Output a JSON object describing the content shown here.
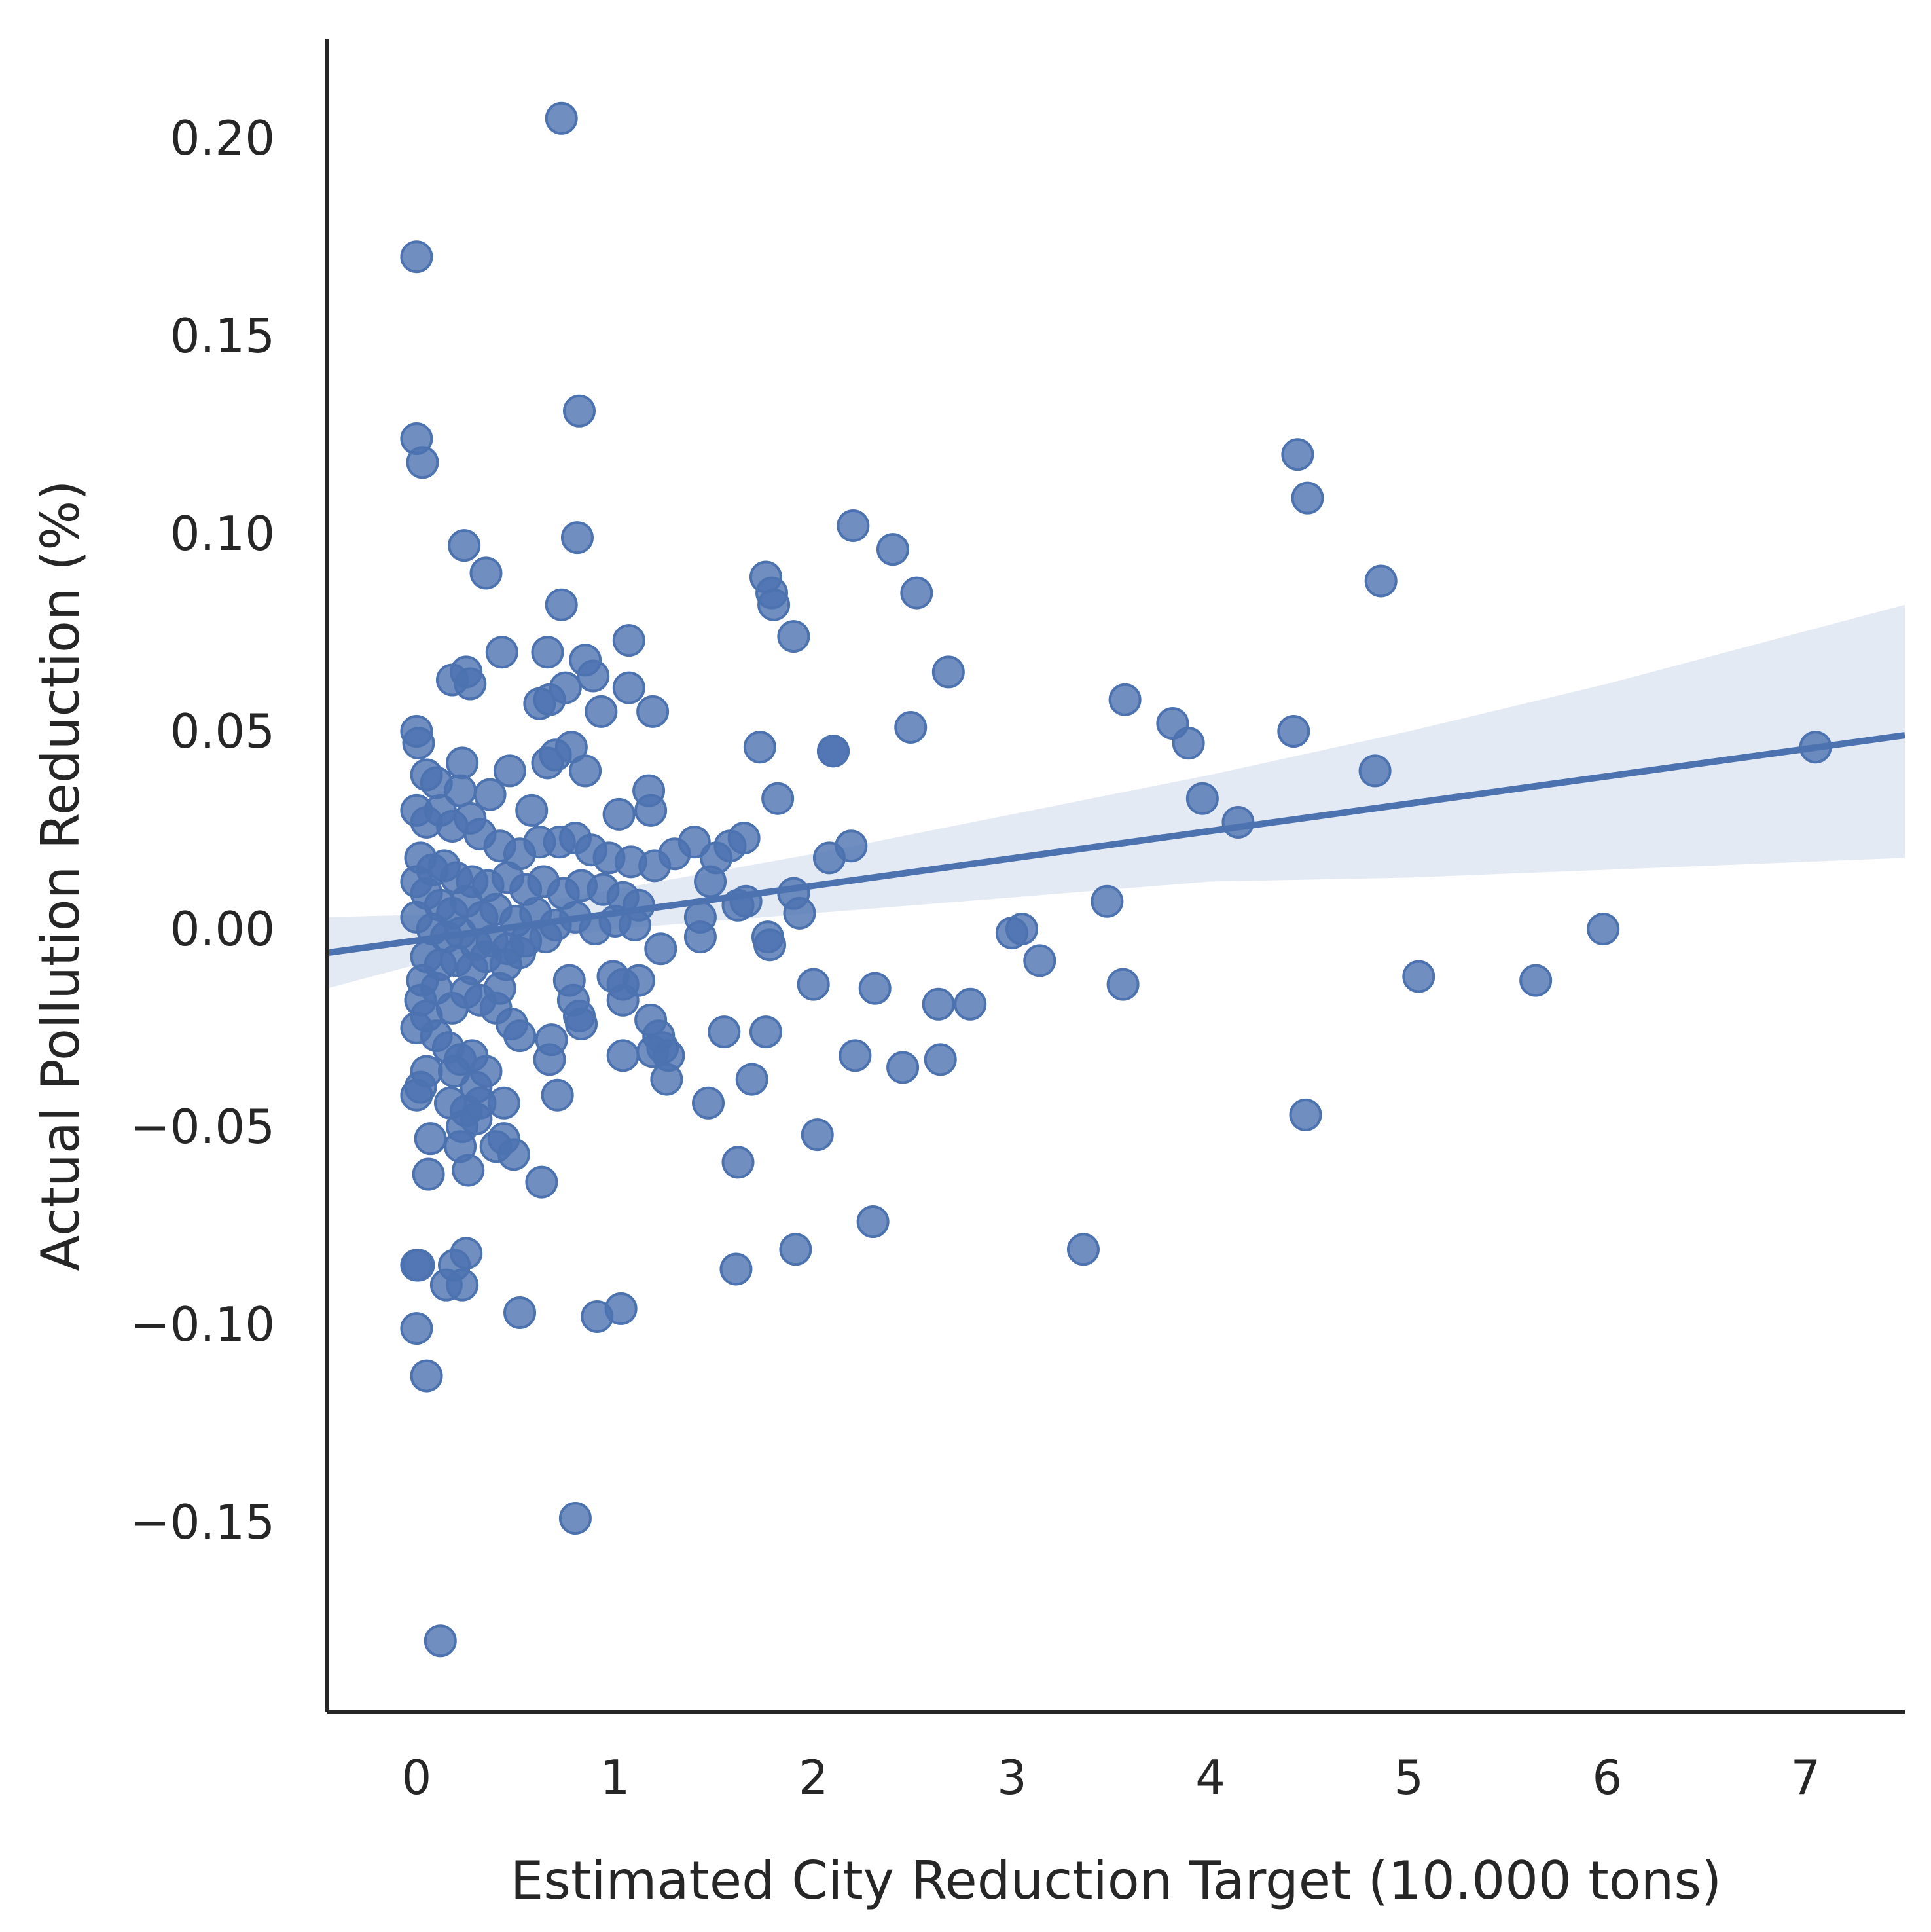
{
  "chart_data": {
    "type": "scatter",
    "title": "",
    "xlabel": "Estimated City Reduction Target (10.000 tons)",
    "ylabel": "Actual Pollution Reduction (%)",
    "xlim": [
      -0.45,
      7.5
    ],
    "ylim": [
      -0.198,
      0.225
    ],
    "xticks": [
      0,
      1,
      2,
      3,
      4,
      5,
      6,
      7
    ],
    "xtick_labels": [
      "0",
      "1",
      "2",
      "3",
      "4",
      "5",
      "6",
      "7"
    ],
    "yticks": [
      0.2,
      0.15,
      0.1,
      0.05,
      0.0,
      -0.05,
      -0.1,
      -0.15
    ],
    "ytick_labels": [
      "0.20",
      "0.15",
      "0.10",
      "0.05",
      "0.00",
      "−0.05",
      "−0.10",
      "−0.15"
    ],
    "grid": false,
    "color": "#4c72b0",
    "regression": {
      "x": [
        -0.45,
        7.5
      ],
      "y": [
        -0.006,
        0.049
      ]
    },
    "confidence_band": {
      "x": [
        -0.45,
        0.3,
        1.0,
        2.0,
        3.0,
        4.0,
        5.0,
        6.0,
        7.5
      ],
      "upper": [
        0.003,
        0.004,
        0.01,
        0.019,
        0.029,
        0.039,
        0.05,
        0.062,
        0.082
      ],
      "lower": [
        -0.015,
        -0.005,
        0.0,
        0.004,
        0.008,
        0.012,
        0.013,
        0.015,
        0.018
      ]
    },
    "points": [
      [
        0.73,
        0.205
      ],
      [
        0.0,
        0.17
      ],
      [
        0.82,
        0.131
      ],
      [
        0.0,
        0.124
      ],
      [
        0.03,
        0.118
      ],
      [
        0.24,
        0.097
      ],
      [
        0.35,
        0.09
      ],
      [
        0.81,
        0.099
      ],
      [
        0.73,
        0.082
      ],
      [
        0.43,
        0.07
      ],
      [
        0.66,
        0.07
      ],
      [
        0.85,
        0.068
      ],
      [
        0.89,
        0.064
      ],
      [
        1.07,
        0.073
      ],
      [
        0.18,
        0.063
      ],
      [
        0.25,
        0.065
      ],
      [
        0.27,
        0.062
      ],
      [
        0.75,
        0.061
      ],
      [
        0.62,
        0.057
      ],
      [
        0.67,
        0.058
      ],
      [
        0.93,
        0.055
      ],
      [
        1.07,
        0.061
      ],
      [
        1.19,
        0.055
      ],
      [
        0.0,
        0.05
      ],
      [
        0.01,
        0.047
      ],
      [
        0.78,
        0.046
      ],
      [
        0.7,
        0.044
      ],
      [
        0.66,
        0.042
      ],
      [
        0.85,
        0.04
      ],
      [
        0.47,
        0.04
      ],
      [
        0.23,
        0.042
      ],
      [
        0.05,
        0.039
      ],
      [
        0.1,
        0.037
      ],
      [
        0.22,
        0.035
      ],
      [
        0.37,
        0.034
      ],
      [
        0.58,
        0.03
      ],
      [
        0.12,
        0.03
      ],
      [
        0.0,
        0.03
      ],
      [
        1.17,
        0.035
      ],
      [
        1.18,
        0.03
      ],
      [
        1.02,
        0.029
      ],
      [
        0.05,
        0.027
      ],
      [
        0.18,
        0.026
      ],
      [
        0.27,
        0.028
      ],
      [
        0.32,
        0.024
      ],
      [
        0.42,
        0.021
      ],
      [
        0.52,
        0.019
      ],
      [
        0.62,
        0.022
      ],
      [
        0.72,
        0.022
      ],
      [
        0.8,
        0.023
      ],
      [
        0.88,
        0.02
      ],
      [
        0.97,
        0.018
      ],
      [
        1.08,
        0.017
      ],
      [
        1.2,
        0.016
      ],
      [
        1.3,
        0.019
      ],
      [
        1.4,
        0.022
      ],
      [
        1.51,
        0.018
      ],
      [
        1.58,
        0.021
      ],
      [
        1.65,
        0.023
      ],
      [
        0.02,
        0.018
      ],
      [
        0.08,
        0.015
      ],
      [
        0.14,
        0.016
      ],
      [
        0.2,
        0.013
      ],
      [
        0.28,
        0.012
      ],
      [
        0.36,
        0.011
      ],
      [
        0.46,
        0.013
      ],
      [
        0.55,
        0.01
      ],
      [
        0.64,
        0.012
      ],
      [
        0.74,
        0.009
      ],
      [
        0.83,
        0.011
      ],
      [
        0.94,
        0.01
      ],
      [
        1.04,
        0.008
      ],
      [
        1.12,
        0.006
      ],
      [
        1.48,
        0.012
      ],
      [
        1.62,
        0.006
      ],
      [
        1.66,
        0.007
      ],
      [
        1.9,
        0.009
      ],
      [
        1.93,
        0.004
      ],
      [
        2.08,
        0.018
      ],
      [
        2.19,
        0.021
      ],
      [
        2.1,
        0.045
      ],
      [
        1.82,
        0.033
      ],
      [
        1.73,
        0.046
      ],
      [
        0.0,
        0.012
      ],
      [
        0.05,
        0.009
      ],
      [
        0.12,
        0.006
      ],
      [
        0.18,
        0.004
      ],
      [
        0.25,
        0.007
      ],
      [
        0.33,
        0.003
      ],
      [
        0.4,
        0.005
      ],
      [
        0.5,
        0.002
      ],
      [
        0.6,
        0.004
      ],
      [
        0.7,
        0.001
      ],
      [
        0.8,
        0.003
      ],
      [
        0.9,
        0.0
      ],
      [
        1.0,
        0.002
      ],
      [
        1.1,
        0.001
      ],
      [
        0.0,
        0.003
      ],
      [
        0.08,
        0.0
      ],
      [
        0.15,
        -0.002
      ],
      [
        0.22,
        -0.001
      ],
      [
        0.3,
        -0.004
      ],
      [
        0.38,
        -0.003
      ],
      [
        0.46,
        -0.005
      ],
      [
        0.55,
        -0.003
      ],
      [
        0.65,
        -0.002
      ],
      [
        1.43,
        0.003
      ],
      [
        1.43,
        -0.002
      ],
      [
        1.77,
        -0.002
      ],
      [
        1.78,
        -0.004
      ],
      [
        1.23,
        -0.005
      ],
      [
        0.05,
        -0.007
      ],
      [
        0.12,
        -0.009
      ],
      [
        0.2,
        -0.008
      ],
      [
        0.28,
        -0.01
      ],
      [
        0.35,
        -0.007
      ],
      [
        0.45,
        -0.009
      ],
      [
        0.52,
        -0.006
      ],
      [
        0.77,
        -0.013
      ],
      [
        0.99,
        -0.012
      ],
      [
        1.04,
        -0.014
      ],
      [
        1.12,
        -0.013
      ],
      [
        1.04,
        -0.018
      ],
      [
        0.79,
        -0.018
      ],
      [
        0.83,
        -0.024
      ],
      [
        0.82,
        -0.022
      ],
      [
        0.68,
        -0.028
      ],
      [
        0.52,
        -0.027
      ],
      [
        0.48,
        -0.024
      ],
      [
        0.42,
        -0.015
      ],
      [
        0.4,
        -0.02
      ],
      [
        0.32,
        -0.018
      ],
      [
        0.25,
        -0.016
      ],
      [
        0.18,
        -0.02
      ],
      [
        0.1,
        -0.015
      ],
      [
        0.03,
        -0.013
      ],
      [
        0.02,
        -0.018
      ],
      [
        0.05,
        -0.022
      ],
      [
        0.0,
        -0.025
      ],
      [
        0.1,
        -0.027
      ],
      [
        0.16,
        -0.03
      ],
      [
        0.22,
        -0.033
      ],
      [
        0.28,
        -0.032
      ],
      [
        0.35,
        -0.036
      ],
      [
        0.3,
        -0.04
      ],
      [
        0.19,
        -0.036
      ],
      [
        0.05,
        -0.036
      ],
      [
        0.02,
        -0.04
      ],
      [
        0.0,
        -0.042
      ],
      [
        0.17,
        -0.044
      ],
      [
        0.25,
        -0.046
      ],
      [
        0.32,
        -0.044
      ],
      [
        0.44,
        -0.044
      ],
      [
        0.23,
        -0.05
      ],
      [
        0.3,
        -0.048
      ],
      [
        0.07,
        -0.053
      ],
      [
        0.22,
        -0.055
      ],
      [
        0.44,
        -0.053
      ],
      [
        0.4,
        -0.055
      ],
      [
        0.49,
        -0.057
      ],
      [
        0.06,
        -0.062
      ],
      [
        0.26,
        -0.061
      ],
      [
        0.63,
        -0.064
      ],
      [
        0.67,
        -0.033
      ],
      [
        0.71,
        -0.042
      ],
      [
        1.18,
        -0.023
      ],
      [
        1.22,
        -0.027
      ],
      [
        1.24,
        -0.03
      ],
      [
        1.27,
        -0.032
      ],
      [
        1.04,
        -0.032
      ],
      [
        1.26,
        -0.038
      ],
      [
        1.19,
        -0.031
      ],
      [
        1.55,
        -0.026
      ],
      [
        1.76,
        -0.026
      ],
      [
        1.47,
        -0.044
      ],
      [
        1.69,
        -0.038
      ],
      [
        1.62,
        -0.059
      ],
      [
        2.0,
        -0.014
      ],
      [
        2.21,
        -0.032
      ],
      [
        2.31,
        -0.015
      ],
      [
        2.45,
        -0.035
      ],
      [
        2.63,
        -0.019
      ],
      [
        2.64,
        -0.033
      ],
      [
        2.79,
        -0.019
      ],
      [
        2.02,
        -0.052
      ],
      [
        0.0,
        -0.085
      ],
      [
        0.01,
        -0.085
      ],
      [
        0.25,
        -0.082
      ],
      [
        0.19,
        -0.085
      ],
      [
        0.15,
        -0.09
      ],
      [
        0.23,
        -0.09
      ],
      [
        0.52,
        -0.097
      ],
      [
        0.91,
        -0.098
      ],
      [
        1.03,
        -0.096
      ],
      [
        0.0,
        -0.101
      ],
      [
        0.05,
        -0.113
      ],
      [
        0.8,
        -0.149
      ],
      [
        0.12,
        -0.18
      ],
      [
        1.61,
        -0.086
      ],
      [
        1.91,
        -0.081
      ],
      [
        2.3,
        -0.074
      ],
      [
        2.2,
        0.102
      ],
      [
        2.4,
        0.096
      ],
      [
        2.52,
        0.085
      ],
      [
        1.76,
        0.089
      ],
      [
        1.79,
        0.085
      ],
      [
        1.8,
        0.082
      ],
      [
        1.9,
        0.074
      ],
      [
        2.68,
        0.065
      ],
      [
        2.49,
        0.051
      ],
      [
        2.1,
        0.045
      ],
      [
        3.0,
        -0.001
      ],
      [
        3.05,
        0.0
      ],
      [
        3.14,
        -0.008
      ],
      [
        3.36,
        -0.081
      ],
      [
        3.48,
        0.007
      ],
      [
        3.57,
        0.058
      ],
      [
        3.56,
        -0.014
      ],
      [
        3.81,
        0.052
      ],
      [
        3.89,
        0.047
      ],
      [
        3.96,
        0.033
      ],
      [
        4.14,
        0.027
      ],
      [
        4.42,
        0.05
      ],
      [
        4.44,
        0.12
      ],
      [
        4.49,
        0.109
      ],
      [
        4.48,
        -0.047
      ],
      [
        4.83,
        0.04
      ],
      [
        4.86,
        0.088
      ],
      [
        5.05,
        -0.012
      ],
      [
        5.64,
        -0.013
      ],
      [
        5.98,
        0.0
      ],
      [
        7.05,
        0.046
      ]
    ]
  }
}
